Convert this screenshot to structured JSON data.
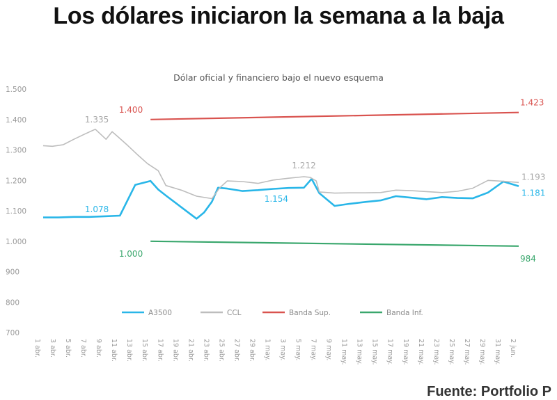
{
  "headline": "Los dólares iniciaron la semana a la baja",
  "source": "Fuente: Portfolio P",
  "chart_data": {
    "type": "line",
    "title": "Dólar oficial y financiero bajo el nuevo esquema",
    "ylim": [
      700,
      1500
    ],
    "yticks": [
      "1.500",
      "1.400",
      "1.300",
      "1.200",
      "1.100",
      "1.000",
      "900",
      "800",
      "700"
    ],
    "categories": [
      "1 abr.",
      "3 abr.",
      "5 abr.",
      "7 abr.",
      "9 abr.",
      "11 abr.",
      "13 abr.",
      "15 abr.",
      "17 abr.",
      "19 abr.",
      "21 abr.",
      "23 abr.",
      "25 abr.",
      "27 abr.",
      "29 abr.",
      "1 may.",
      "3 may.",
      "5 may.",
      "7 may.",
      "9 may.",
      "11 may.",
      "13 may.",
      "15 may.",
      "17 may.",
      "19 may.",
      "21 may.",
      "23 may.",
      "25 may.",
      "27 may.",
      "29 may.",
      "31 may.",
      "2 jun."
    ],
    "grid": false,
    "legend": "bottom",
    "series": [
      {
        "name": "A3500",
        "color": "#29b6e8",
        "x": [
          0,
          1,
          2,
          3,
          4,
          5,
          6,
          7,
          7.5,
          8,
          9,
          10,
          10.5,
          11,
          11.4,
          12,
          13,
          14,
          15,
          16,
          17,
          17.5,
          18,
          19,
          20,
          21,
          22,
          23,
          24,
          25,
          26,
          27,
          28,
          29,
          30,
          31
        ],
        "y": [
          1078,
          1078,
          1080,
          1080,
          1082,
          1084,
          1185,
          1198,
          1170,
          1150,
          1112,
          1074,
          1095,
          1130,
          1176,
          1173,
          1165,
          1168,
          1172,
          1175,
          1176,
          1205,
          1158,
          1116,
          1123,
          1129,
          1134,
          1148,
          1143,
          1138,
          1145,
          1142,
          1141,
          1160,
          1196,
          1181
        ]
      },
      {
        "name": "CCL",
        "color": "#bdbdbd",
        "x": [
          0,
          0.6,
          1.3,
          2,
          2.7,
          3.4,
          4.1,
          4.5,
          4.9,
          5.5,
          6.2,
          6.8,
          7.5,
          8,
          9,
          10,
          11,
          11.5,
          12,
          13,
          14,
          15,
          16,
          17,
          17.4,
          17.8,
          18,
          19,
          20,
          21,
          22,
          23,
          24,
          25,
          26,
          27,
          28,
          29,
          30,
          31
        ],
        "y": [
          1314,
          1312,
          1317,
          1335,
          1352,
          1368,
          1335,
          1360,
          1342,
          1315,
          1282,
          1255,
          1232,
          1183,
          1168,
          1148,
          1140,
          1175,
          1198,
          1196,
          1190,
          1201,
          1207,
          1212,
          1210,
          1198,
          1162,
          1158,
          1159,
          1159,
          1160,
          1168,
          1166,
          1163,
          1160,
          1164,
          1174,
          1200,
          1197,
          1193
        ]
      },
      {
        "name": "Banda Sup.",
        "color": "#d9534f",
        "x": [
          7,
          31
        ],
        "y": [
          1400,
          1423
        ]
      },
      {
        "name": "Banda Inf.",
        "color": "#3aa76d",
        "x": [
          7,
          31
        ],
        "y": [
          1000,
          984
        ]
      }
    ],
    "annotations": [
      {
        "text": "1.400",
        "series": "Banda Sup."
      },
      {
        "text": "1.423",
        "series": "Banda Sup."
      },
      {
        "text": "1.335",
        "series": "CCL"
      },
      {
        "text": "1.212",
        "series": "CCL"
      },
      {
        "text": "1.193",
        "series": "CCL"
      },
      {
        "text": "1.078",
        "series": "A3500"
      },
      {
        "text": "1.154",
        "series": "A3500"
      },
      {
        "text": "1.181",
        "series": "A3500"
      },
      {
        "text": "1.000",
        "series": "Banda Inf."
      },
      {
        "text": "984",
        "series": "Banda Inf."
      }
    ]
  }
}
